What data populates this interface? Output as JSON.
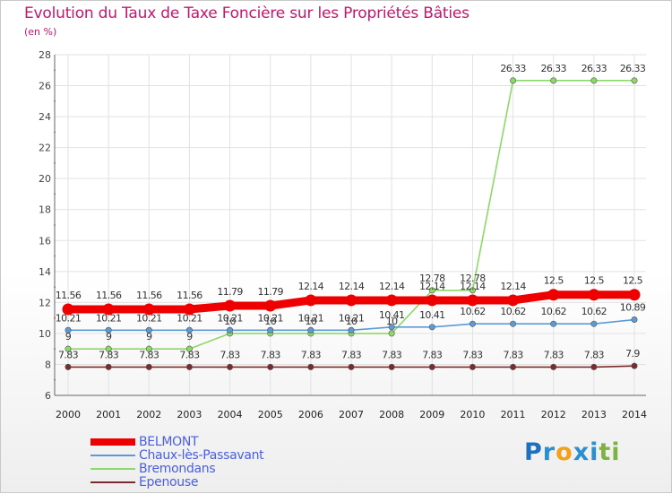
{
  "title": "Evolution du Taux de Taxe Foncière sur les Propriétés Bâties",
  "subtitle": "(en %)",
  "logo": {
    "letters": [
      "P",
      "r",
      "o",
      "x",
      "i",
      "t",
      "i"
    ],
    "colors": [
      "#1f6fbf",
      "#2a8fd0",
      "#f2a11c",
      "#2a8fd0",
      "#2a8fd0",
      "#7cb342",
      "#7cb342"
    ]
  },
  "chart_data": {
    "type": "line",
    "title": "Evolution du Taux de Taxe Foncière sur les Propriétés Bâties",
    "ylabel": "(en %)",
    "xlabel": "",
    "x": [
      "2000",
      "2001",
      "2002",
      "2003",
      "2004",
      "2005",
      "2006",
      "2007",
      "2008",
      "2009",
      "2010",
      "2011",
      "2012",
      "2013",
      "2014"
    ],
    "ylim": [
      6,
      28
    ],
    "yticks": [
      "6",
      "8",
      "10",
      "12",
      "14",
      "16",
      "18",
      "20",
      "22",
      "24",
      "26",
      "28"
    ],
    "grid": true,
    "legend_position": "bottom-left",
    "series": [
      {
        "name": "BELMONT",
        "color": "#ee0000",
        "weight": "heavy",
        "values": [
          11.56,
          11.56,
          11.56,
          11.56,
          11.79,
          11.79,
          12.14,
          12.14,
          12.14,
          12.14,
          12.14,
          12.14,
          12.5,
          12.5,
          12.5
        ],
        "labels": [
          "11.56",
          "11.56",
          "11.56",
          "11.56",
          "11.79",
          "11.79",
          "12.14",
          "12.14",
          "12.14",
          "12.14",
          "12.14",
          "12.14",
          "12.5",
          "12.5",
          "12.5"
        ]
      },
      {
        "name": "Chaux-lès-Passavant",
        "color": "#5b9bd5",
        "weight": "normal",
        "values": [
          10.21,
          10.21,
          10.21,
          10.21,
          10.21,
          10.21,
          10.21,
          10.21,
          10.41,
          10.41,
          10.62,
          10.62,
          10.62,
          10.62,
          10.89
        ],
        "labels": [
          "10.21",
          "10.21",
          "10.21",
          "10.21",
          "10.21",
          "10.21",
          "10.21",
          "10.21",
          "10.41",
          "10.41",
          "10.62",
          "10.62",
          "10.62",
          "10.62",
          "10.89"
        ]
      },
      {
        "name": "Bremondans",
        "color": "#8ed86a",
        "weight": "normal",
        "values": [
          9,
          9,
          9,
          9,
          10,
          10,
          10,
          10,
          10,
          12.78,
          12.78,
          26.33,
          26.33,
          26.33,
          26.33
        ],
        "labels": [
          "9",
          "9",
          "9",
          "9",
          "10",
          "10",
          "10",
          "10",
          "10",
          "12.78",
          "12.78",
          "26.33",
          "26.33",
          "26.33",
          "26.33"
        ]
      },
      {
        "name": "Epenouse",
        "color": "#7b2b2b",
        "weight": "normal",
        "values": [
          7.83,
          7.83,
          7.83,
          7.83,
          7.83,
          7.83,
          7.83,
          7.83,
          7.83,
          7.83,
          7.83,
          7.83,
          7.83,
          7.83,
          7.9
        ],
        "labels": [
          "7.83",
          "7.83",
          "7.83",
          "7.83",
          "7.83",
          "7.83",
          "7.83",
          "7.83",
          "7.83",
          "7.83",
          "7.83",
          "7.83",
          "7.83",
          "7.83",
          "7.9"
        ]
      }
    ]
  }
}
